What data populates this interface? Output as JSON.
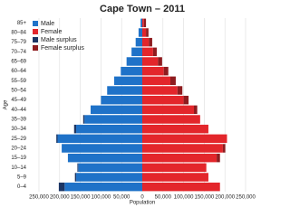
{
  "chart_data": {
    "type": "population-pyramid",
    "title": "Cape Town – 2011",
    "x_label": "Population",
    "y_label": "Age",
    "categories": [
      "0–4",
      "5–9",
      "10–14",
      "15–19",
      "20–24",
      "25–29",
      "30–34",
      "35–39",
      "40–44",
      "45–49",
      "50–54",
      "55–59",
      "60–64",
      "65–69",
      "70–74",
      "75–79",
      "80–84",
      "85+"
    ],
    "series": [
      {
        "name": "Male",
        "color": "#1f72c8",
        "side": "left",
        "values": [
          188000,
          160000,
          155000,
          180000,
          195000,
          205000,
          160000,
          140000,
          125000,
          100000,
          85000,
          68000,
          52000,
          38000,
          26000,
          16000,
          9000,
          4000
        ]
      },
      {
        "name": "Female",
        "color": "#e3262b",
        "side": "right",
        "values": [
          188000,
          160000,
          155000,
          180000,
          195000,
          205000,
          160000,
          140000,
          125000,
          100000,
          85000,
          68000,
          52000,
          38000,
          26000,
          16000,
          9000,
          4000
        ]
      },
      {
        "name": "Male surplus",
        "color": "#1b3564",
        "side": "left",
        "stack_on": 0,
        "values": [
          14000,
          3000,
          2000,
          null,
          null,
          3000,
          5000,
          3000,
          null,
          null,
          null,
          null,
          null,
          null,
          null,
          null,
          null,
          null
        ]
      },
      {
        "name": "Female surplus",
        "color": "#8e1c1f",
        "side": "right",
        "stack_on": 1,
        "values": [
          null,
          null,
          null,
          8000,
          6000,
          null,
          null,
          null,
          8000,
          12000,
          12000,
          13000,
          11000,
          10000,
          9000,
          8000,
          6000,
          5000
        ]
      }
    ],
    "xlim": [
      -250000,
      250000
    ],
    "xticks": [
      {
        "value": -250000,
        "label": "250,000"
      },
      {
        "value": -200000,
        "label": "200,000"
      },
      {
        "value": -150000,
        "label": "150,000"
      },
      {
        "value": -100000,
        "label": "100,000"
      },
      {
        "value": -50000,
        "label": "50,000"
      },
      0,
      {
        "value": 50000,
        "label": "50,000"
      },
      {
        "value": 100000,
        "label": "100,000"
      },
      {
        "value": 150000,
        "label": "150,000"
      },
      {
        "value": 200000,
        "label": "200,000"
      },
      {
        "value": 250000,
        "label": "250,000"
      }
    ],
    "grid": true,
    "legend": "top-left"
  }
}
